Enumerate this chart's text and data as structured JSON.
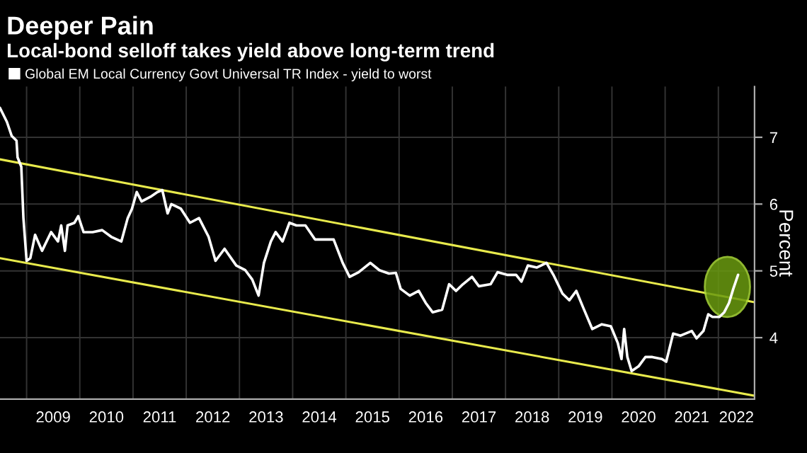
{
  "chart_data": {
    "type": "line",
    "title": "Deeper Pain",
    "subtitle": "Local-bond selloff takes yield above long-term trend",
    "ylabel": "Percent",
    "xlim": [
      2008.5,
      2022.68
    ],
    "ylim": [
      3.08,
      7.76
    ],
    "yticks": [
      4,
      5,
      6,
      7
    ],
    "xticks": [
      {
        "value": 2009,
        "label": null
      },
      {
        "value": 2010,
        "label": null
      },
      {
        "value": 2011,
        "label": null
      },
      {
        "value": 2012,
        "label": null
      },
      {
        "value": 2013,
        "label": null
      },
      {
        "value": 2014,
        "label": null
      },
      {
        "value": 2015,
        "label": null
      },
      {
        "value": 2016,
        "label": null
      },
      {
        "value": 2017,
        "label": null
      },
      {
        "value": 2018,
        "label": null
      },
      {
        "value": 2019,
        "label": null
      },
      {
        "value": 2020,
        "label": null
      },
      {
        "value": 2021,
        "label": null
      },
      {
        "value": 2022,
        "label": null
      },
      {
        "value": 2009.5,
        "label": "2009"
      },
      {
        "value": 2010.5,
        "label": "2010"
      },
      {
        "value": 2011.5,
        "label": "2011"
      },
      {
        "value": 2012.5,
        "label": "2012"
      },
      {
        "value": 2013.5,
        "label": "2013"
      },
      {
        "value": 2014.5,
        "label": "2014"
      },
      {
        "value": 2015.5,
        "label": "2015"
      },
      {
        "value": 2016.5,
        "label": "2016"
      },
      {
        "value": 2017.5,
        "label": "2017"
      },
      {
        "value": 2018.5,
        "label": "2018"
      },
      {
        "value": 2019.5,
        "label": "2019"
      },
      {
        "value": 2020.5,
        "label": "2020"
      },
      {
        "value": 2021.5,
        "label": "2021"
      },
      {
        "value": 2022.34,
        "label": "2022"
      }
    ],
    "grid": true,
    "legend": "top left",
    "series": [
      {
        "name": "Global EM Local Currency Govt Universal TR Index - yield to worst",
        "color": "#ffffff",
        "x": [
          2008.5,
          2008.63,
          2008.72,
          2008.81,
          2008.83,
          2008.9,
          2008.94,
          2009.0,
          2009.07,
          2009.16,
          2009.29,
          2009.46,
          2009.59,
          2009.65,
          2009.72,
          2009.77,
          2009.9,
          2009.97,
          2010.07,
          2010.24,
          2010.42,
          2010.59,
          2010.78,
          2010.9,
          2010.98,
          2011.07,
          2011.16,
          2011.33,
          2011.46,
          2011.55,
          2011.65,
          2011.72,
          2011.9,
          2012.07,
          2012.24,
          2012.42,
          2012.55,
          2012.72,
          2012.94,
          2013.11,
          2013.24,
          2013.36,
          2013.46,
          2013.59,
          2013.68,
          2013.81,
          2013.94,
          2014.07,
          2014.24,
          2014.42,
          2014.59,
          2014.77,
          2014.94,
          2015.07,
          2015.24,
          2015.46,
          2015.63,
          2015.81,
          2015.94,
          2016.03,
          2016.2,
          2016.37,
          2016.5,
          2016.63,
          2016.81,
          2016.94,
          2017.07,
          2017.2,
          2017.37,
          2017.5,
          2017.72,
          2017.85,
          2018.03,
          2018.2,
          2018.3,
          2018.42,
          2018.59,
          2018.77,
          2018.9,
          2019.07,
          2019.2,
          2019.33,
          2019.46,
          2019.63,
          2019.81,
          2019.98,
          2020.11,
          2020.18,
          2020.23,
          2020.29,
          2020.37,
          2020.5,
          2020.63,
          2020.76,
          2020.94,
          2021.02,
          2021.15,
          2021.29,
          2021.5,
          2021.59,
          2021.72,
          2021.81,
          2021.89,
          2022.02,
          2022.11,
          2022.2,
          2022.28,
          2022.37
        ],
        "values": [
          7.44,
          7.23,
          7.02,
          6.95,
          6.7,
          6.56,
          5.79,
          5.15,
          5.19,
          5.54,
          5.3,
          5.58,
          5.44,
          5.68,
          5.3,
          5.68,
          5.72,
          5.82,
          5.58,
          5.58,
          5.61,
          5.51,
          5.44,
          5.79,
          5.93,
          6.18,
          6.04,
          6.11,
          6.18,
          6.21,
          5.86,
          6.0,
          5.93,
          5.72,
          5.79,
          5.51,
          5.15,
          5.33,
          5.08,
          5.01,
          4.87,
          4.63,
          5.12,
          5.44,
          5.58,
          5.44,
          5.72,
          5.68,
          5.68,
          5.47,
          5.47,
          5.47,
          5.12,
          4.91,
          4.98,
          5.12,
          5.01,
          4.96,
          4.97,
          4.73,
          4.63,
          4.7,
          4.52,
          4.38,
          4.42,
          4.8,
          4.7,
          4.8,
          4.91,
          4.77,
          4.8,
          4.98,
          4.94,
          4.94,
          4.84,
          5.08,
          5.05,
          5.12,
          4.94,
          4.66,
          4.56,
          4.7,
          4.45,
          4.13,
          4.2,
          4.17,
          3.92,
          3.68,
          4.13,
          3.71,
          3.5,
          3.57,
          3.71,
          3.71,
          3.68,
          3.64,
          4.06,
          4.03,
          4.1,
          3.99,
          4.1,
          4.35,
          4.31,
          4.31,
          4.38,
          4.52,
          4.73,
          4.94
        ]
      },
      {
        "color": "#e8ea4c",
        "x": [
          2008.5,
          2022.68
        ],
        "values": [
          6.67,
          4.53
        ]
      },
      {
        "color": "#e8ea4c",
        "x": [
          2008.5,
          2022.68
        ],
        "values": [
          5.19,
          3.13
        ]
      }
    ]
  }
}
